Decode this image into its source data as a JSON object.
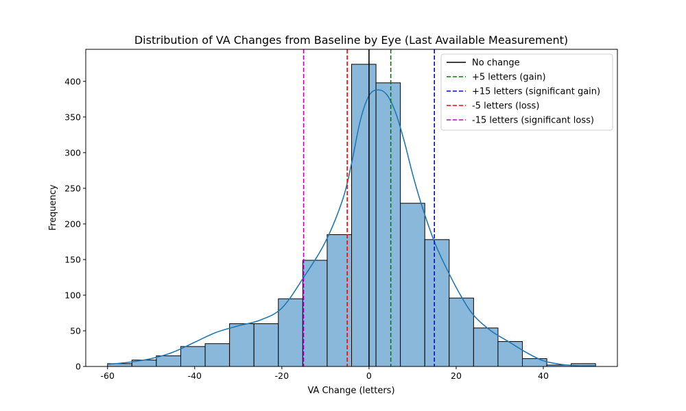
{
  "chart_data": {
    "type": "bar",
    "title": "Distribution of VA Changes from Baseline by Eye (Last Available Measurement)",
    "xlabel": "VA Change (letters)",
    "ylabel": "Frequency",
    "xlim": [
      -65,
      57
    ],
    "ylim": [
      0,
      445
    ],
    "xticks": [
      -60,
      -40,
      -20,
      0,
      20,
      40
    ],
    "yticks": [
      0,
      50,
      100,
      150,
      200,
      250,
      300,
      350,
      400
    ],
    "bins": [
      {
        "start": -60.0,
        "end": -54.4,
        "count": 4
      },
      {
        "start": -54.4,
        "end": -48.8,
        "count": 9
      },
      {
        "start": -48.8,
        "end": -43.2,
        "count": 15
      },
      {
        "start": -43.2,
        "end": -37.6,
        "count": 28
      },
      {
        "start": -37.6,
        "end": -32.0,
        "count": 32
      },
      {
        "start": -32.0,
        "end": -26.4,
        "count": 60
      },
      {
        "start": -26.4,
        "end": -20.8,
        "count": 60
      },
      {
        "start": -20.8,
        "end": -15.2,
        "count": 95
      },
      {
        "start": -15.2,
        "end": -9.6,
        "count": 149
      },
      {
        "start": -9.6,
        "end": -4.0,
        "count": 185
      },
      {
        "start": -4.0,
        "end": 1.6,
        "count": 424
      },
      {
        "start": 1.6,
        "end": 7.2,
        "count": 398
      },
      {
        "start": 7.2,
        "end": 12.8,
        "count": 229
      },
      {
        "start": 12.8,
        "end": 18.4,
        "count": 178
      },
      {
        "start": 18.4,
        "end": 24.0,
        "count": 96
      },
      {
        "start": 24.0,
        "end": 29.6,
        "count": 54
      },
      {
        "start": 29.6,
        "end": 35.2,
        "count": 35
      },
      {
        "start": 35.2,
        "end": 40.8,
        "count": 11
      },
      {
        "start": 40.8,
        "end": 46.4,
        "count": 2
      },
      {
        "start": 46.4,
        "end": 52.0,
        "count": 4
      }
    ],
    "kde": {
      "x": [
        -60,
        -55,
        -50,
        -45,
        -40,
        -35,
        -30,
        -25,
        -20,
        -15,
        -10,
        -6,
        -4,
        -2,
        0,
        2,
        4,
        6,
        8,
        10,
        12,
        15,
        18,
        21,
        24,
        28,
        32,
        36,
        40,
        44,
        48,
        52
      ],
      "y": [
        3,
        6,
        11,
        20,
        34,
        48,
        57,
        65,
        82,
        125,
        175,
        235,
        285,
        345,
        380,
        388,
        382,
        358,
        318,
        270,
        228,
        175,
        135,
        100,
        72,
        50,
        35,
        20,
        8,
        3,
        1,
        1
      ]
    },
    "reference_lines": [
      {
        "x": 0,
        "label": "No change",
        "color": "#000000",
        "style": "solid"
      },
      {
        "x": 5,
        "label": "+5 letters (gain)",
        "color": "#008000",
        "style": "dashed"
      },
      {
        "x": 15,
        "label": "+15 letters (significant gain)",
        "color": "#0000ff",
        "style": "dashed"
      },
      {
        "x": -5,
        "label": "-5 letters (loss)",
        "color": "#ff0000",
        "style": "dashed"
      },
      {
        "x": -15,
        "label": "-15 letters (significant loss)",
        "color": "#bf00bf",
        "style": "dashed"
      }
    ],
    "legend_position": "top-right",
    "bar_color": "#8ab8db",
    "kde_color": "#1f77b4"
  }
}
